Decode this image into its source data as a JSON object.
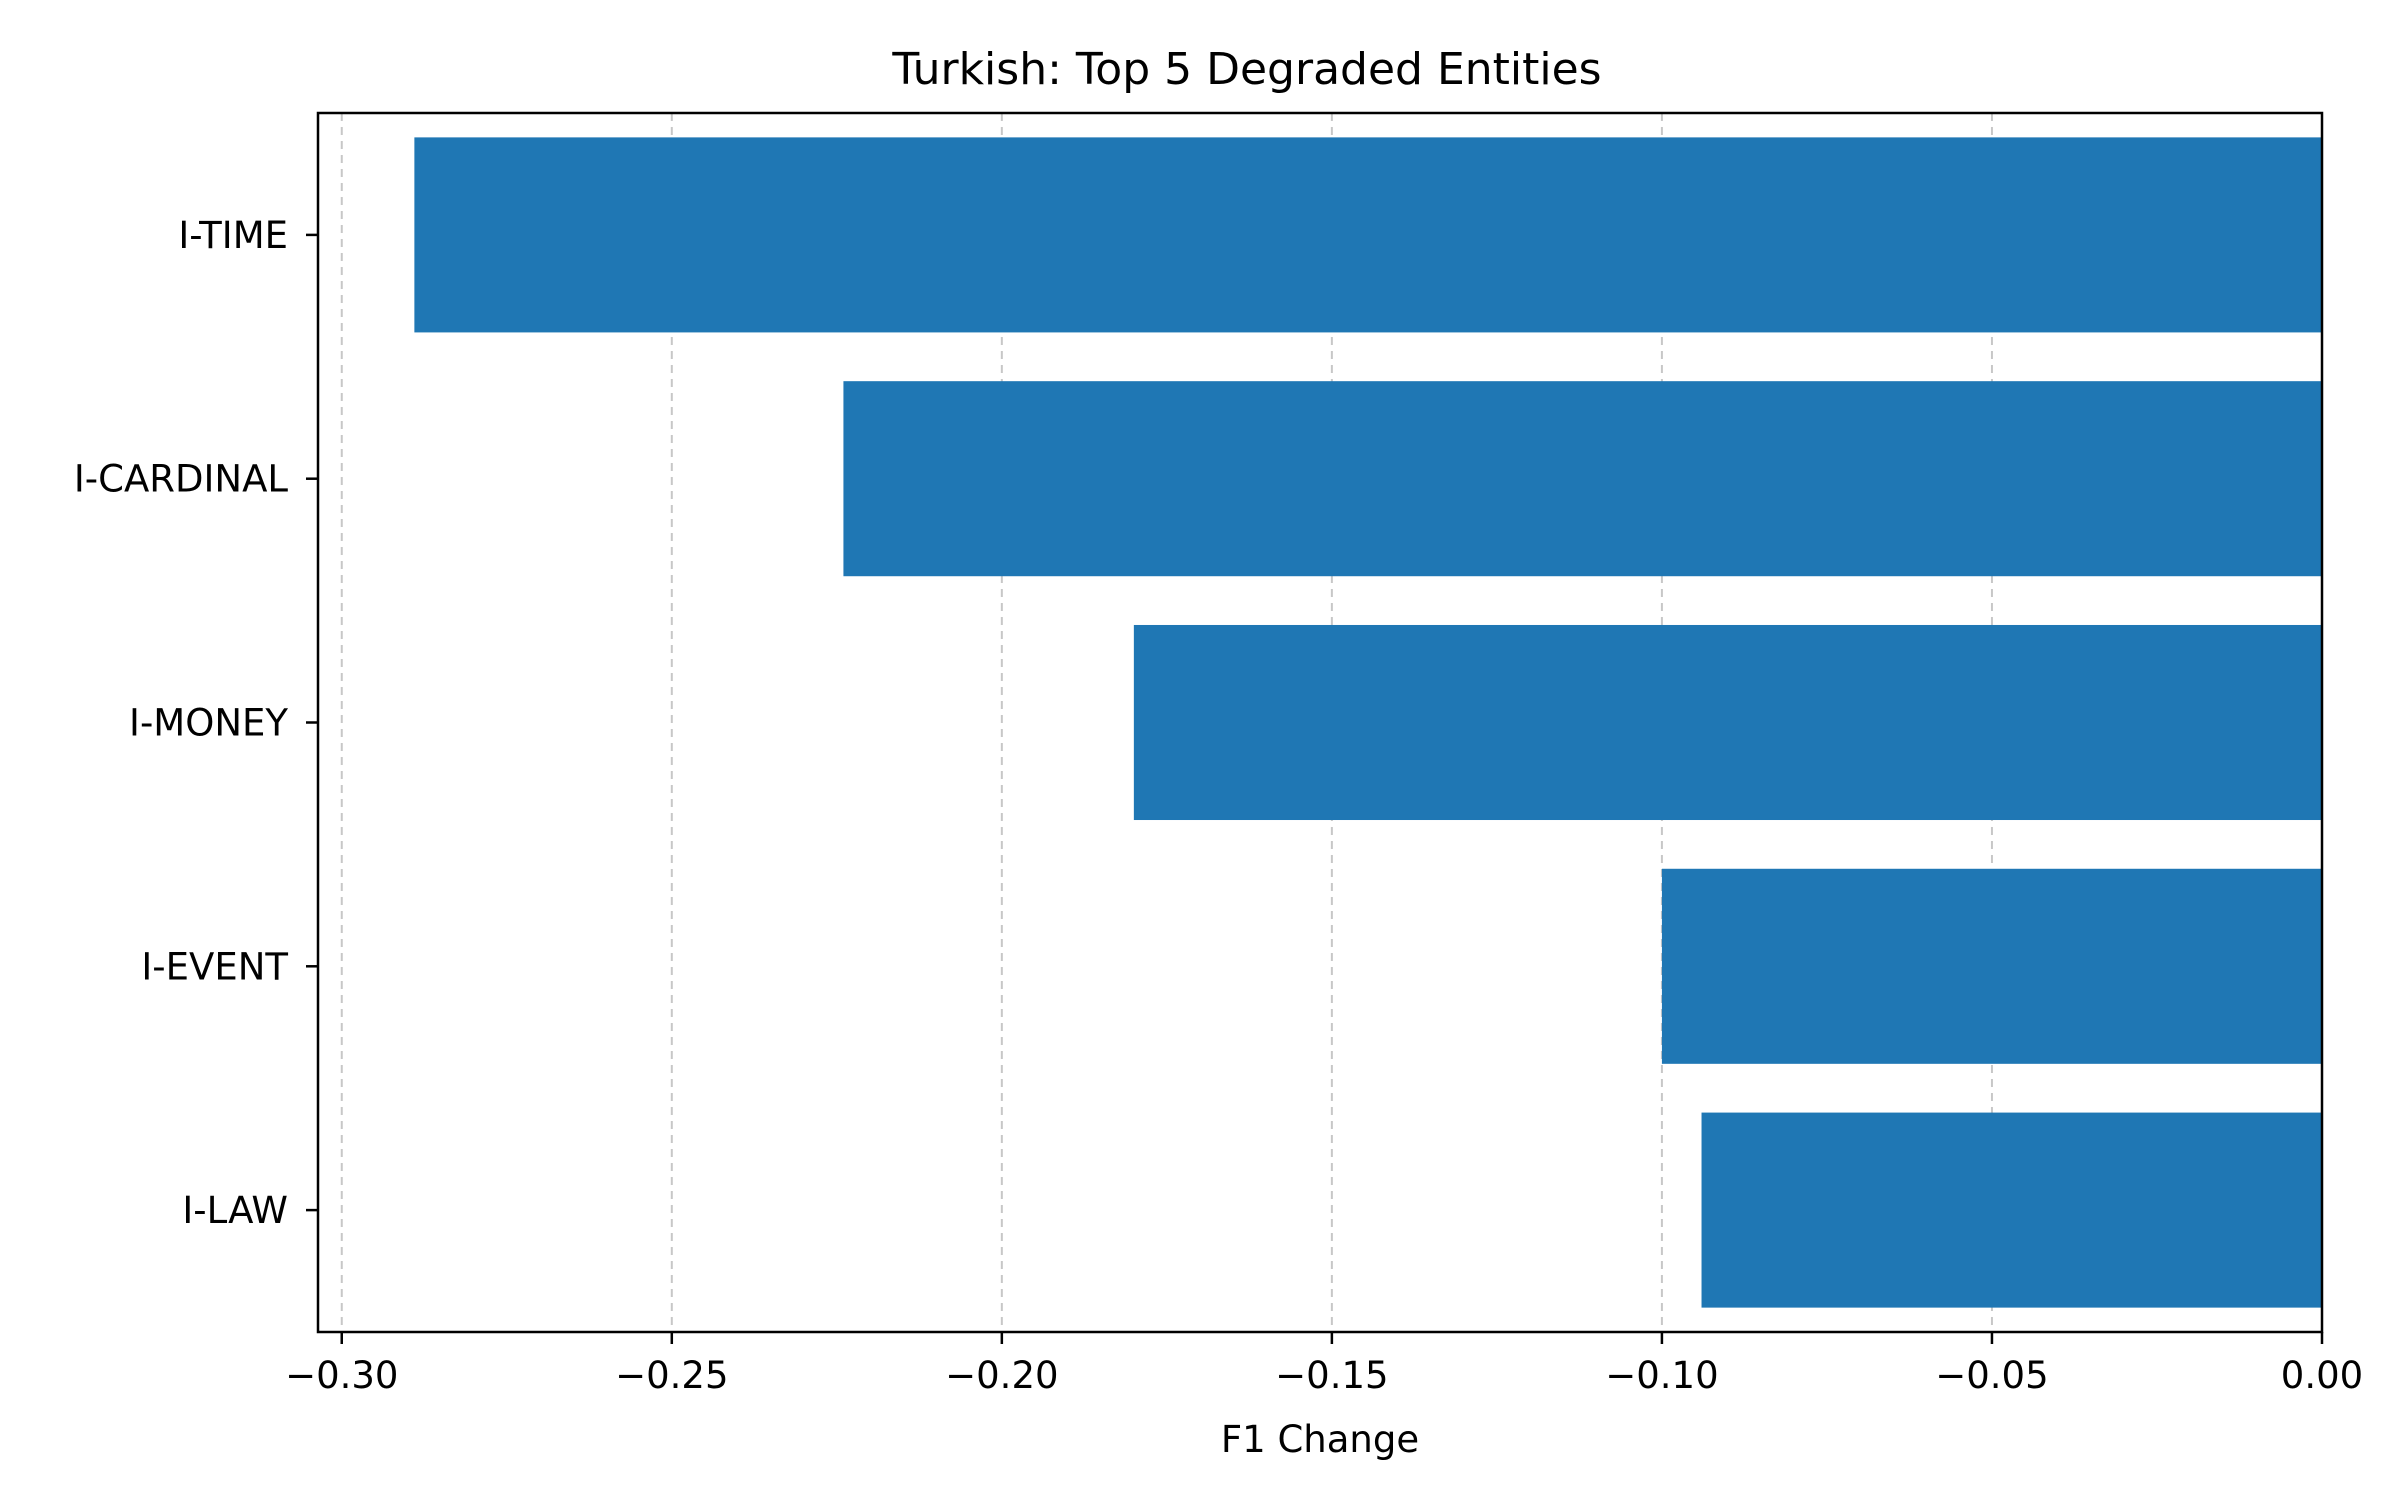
{
  "chart_data": {
    "type": "bar",
    "orientation": "horizontal",
    "title": "Turkish: Top 5 Degraded Entities",
    "xlabel": "F1 Change",
    "ylabel": "",
    "categories": [
      "I-TIME",
      "I-CARDINAL",
      "I-MONEY",
      "I-EVENT",
      "I-LAW"
    ],
    "values": [
      -0.289,
      -0.224,
      -0.18,
      -0.1,
      -0.094
    ],
    "xlim": [
      -0.3036,
      0.0
    ],
    "xticks": [
      -0.3,
      -0.25,
      -0.2,
      -0.15,
      -0.1,
      -0.05,
      0.0
    ],
    "xtick_labels": [
      "−0.30",
      "−0.25",
      "−0.20",
      "−0.15",
      "−0.10",
      "−0.05",
      "0.00"
    ],
    "grid": "x, dashed",
    "bar_color": "#1f77b4"
  }
}
